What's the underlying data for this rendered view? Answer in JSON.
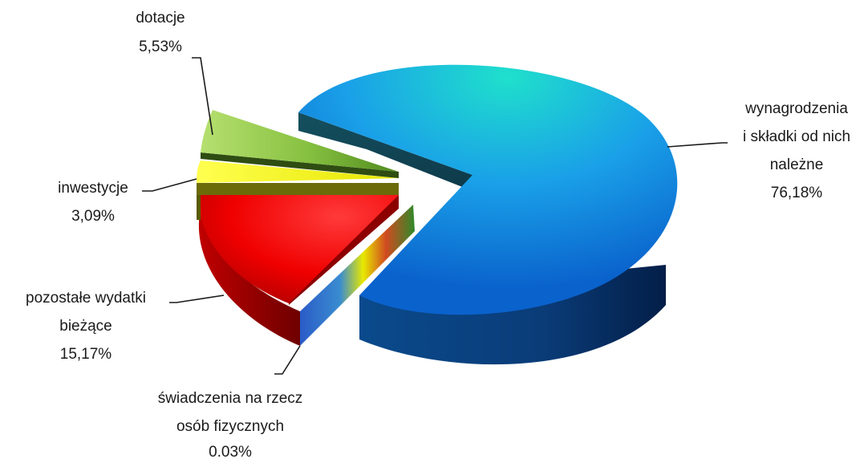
{
  "chart_data": {
    "type": "pie",
    "title": "",
    "slices": [
      {
        "label_lines": [
          "wynagrodzenia",
          "i składki od nich",
          "należne"
        ],
        "value_text": "76,18%",
        "value": 76.18,
        "colors": [
          "#1fe0cc",
          "#1aa0e8",
          "#0a62cc"
        ],
        "side": [
          "#0a4a8c",
          "#031e48"
        ],
        "exploded": false
      },
      {
        "label_lines": [
          "świadczenia na rzecz",
          "osób fizycznych"
        ],
        "value_text": "0.03%",
        "value": 0.03,
        "colors": [
          "#3a6fd0",
          "#3a6fd0",
          "#3a6fd0"
        ],
        "side": [
          "#2a5cc8",
          "#3a8cd0"
        ],
        "exploded": true
      },
      {
        "label_lines": [
          "pozostałe wydatki",
          "bieżące"
        ],
        "value_text": "15,17%",
        "value": 15.17,
        "colors": [
          "#ff3a3a",
          "#f00000",
          "#b00000"
        ],
        "side": [
          "#c00000",
          "#6e0000"
        ],
        "exploded": true
      },
      {
        "label_lines": [
          "inwestycje"
        ],
        "value_text": "3,09%",
        "value": 3.09,
        "colors": [
          "#ffff50",
          "#f6f600",
          "#d4d400"
        ],
        "side": [
          "#7a7a0a",
          "#4e4e00"
        ],
        "exploded": true
      },
      {
        "label_lines": [
          "dotacje"
        ],
        "value_text": "5,53%",
        "value": 5.53,
        "colors": [
          "#b6e070",
          "#86c040",
          "#4f8a1e"
        ],
        "side": [
          "#3a6318",
          "#22400c"
        ],
        "exploded": true
      }
    ],
    "legend": "none"
  }
}
